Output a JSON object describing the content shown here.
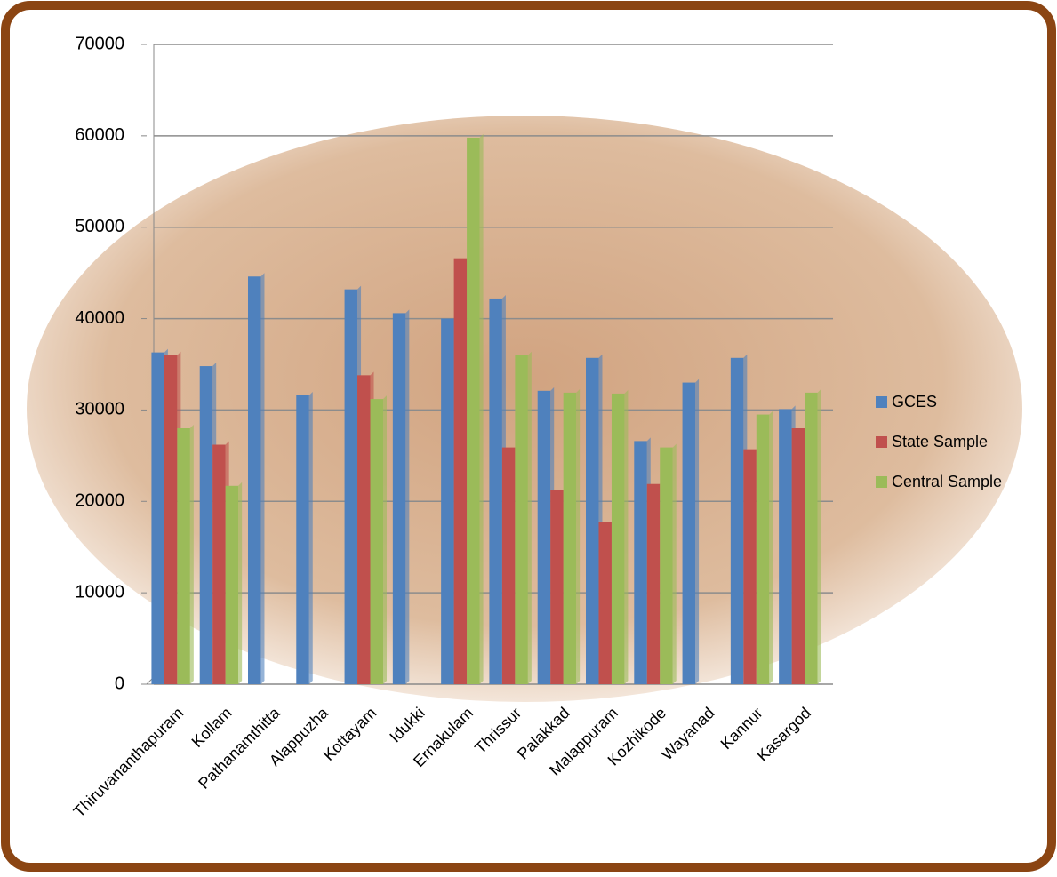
{
  "chart_data": {
    "type": "bar",
    "categories": [
      "Thiruvananthapuram",
      "Kollam",
      "Pathanamthitta",
      "Alappuzha",
      "Kottayam",
      "Idukki",
      "Ernakulam",
      "Thrissur",
      "Palakkad",
      "Malappuram",
      "Kozhikode",
      "Wayanad",
      "Kannur",
      "Kasargod"
    ],
    "series": [
      {
        "name": "GCES",
        "color": "#4f81bd",
        "values": [
          36300,
          34800,
          44600,
          31600,
          43200,
          40600,
          40000,
          42200,
          32100,
          35700,
          26600,
          33000,
          35700,
          30100
        ]
      },
      {
        "name": "State Sample",
        "color": "#c0504d",
        "values": [
          36000,
          26200,
          null,
          null,
          33800,
          null,
          46600,
          25900,
          21200,
          17700,
          21900,
          null,
          25700,
          28000
        ]
      },
      {
        "name": "Central Sample",
        "color": "#9bbb59",
        "values": [
          28000,
          21700,
          null,
          null,
          31200,
          null,
          59800,
          36000,
          31900,
          31800,
          25900,
          null,
          29500,
          31900
        ]
      }
    ],
    "ylim": [
      0,
      70000
    ],
    "yticks": [
      0,
      10000,
      20000,
      30000,
      40000,
      50000,
      60000,
      70000
    ],
    "grid": true,
    "legend": "right"
  }
}
